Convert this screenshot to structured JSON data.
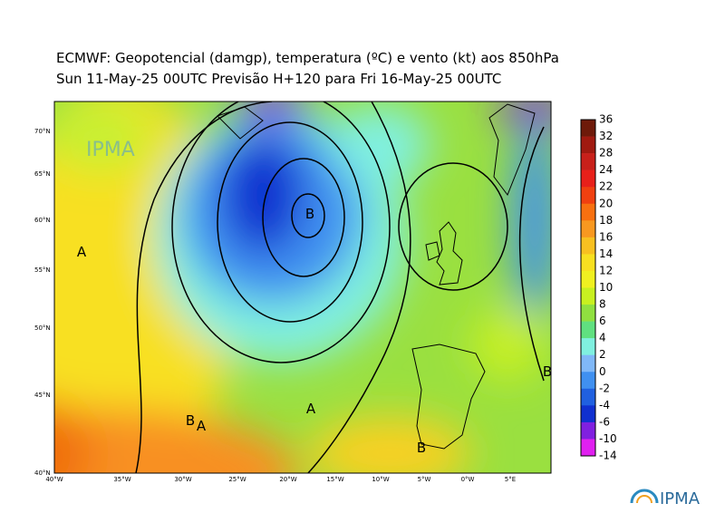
{
  "header": {
    "title": "ECMWF:  Geopotencial (damgp), temperatura (ºC) e vento (kt) aos 850hPa",
    "subtitle": "Sun 11-May-25 00UTC Previsão H+120 para Fri 16-May-25 00UTC"
  },
  "colorbar": {
    "levels": [
      36,
      32,
      28,
      24,
      22,
      20,
      18,
      16,
      14,
      12,
      10,
      8,
      6,
      4,
      2,
      0,
      -2,
      -4,
      -6,
      -10,
      -14
    ],
    "colors": [
      "#6e1a0a",
      "#a01a10",
      "#c8201a",
      "#e8201a",
      "#f04010",
      "#f87010",
      "#f89820",
      "#f8c020",
      "#f8e020",
      "#f0f020",
      "#c8f020",
      "#90e040",
      "#60e080",
      "#80f0e0",
      "#80b8f8",
      "#4090f0",
      "#2060e0",
      "#1030d0",
      "#8020e0",
      "#e020f0"
    ]
  },
  "map": {
    "latitudes": [
      "70°N",
      "65°N",
      "60°N",
      "55°N",
      "50°N",
      "45°N",
      "40°N"
    ],
    "longitudes": [
      "40°W",
      "35°W",
      "30°W",
      "25°W",
      "20°W",
      "15°W",
      "10°W",
      "5°W",
      "0°W",
      "5°E"
    ],
    "pressure_centers": [
      "A",
      "B",
      "B",
      "A",
      "A",
      "B",
      "B"
    ]
  },
  "logo": "IPMA"
}
